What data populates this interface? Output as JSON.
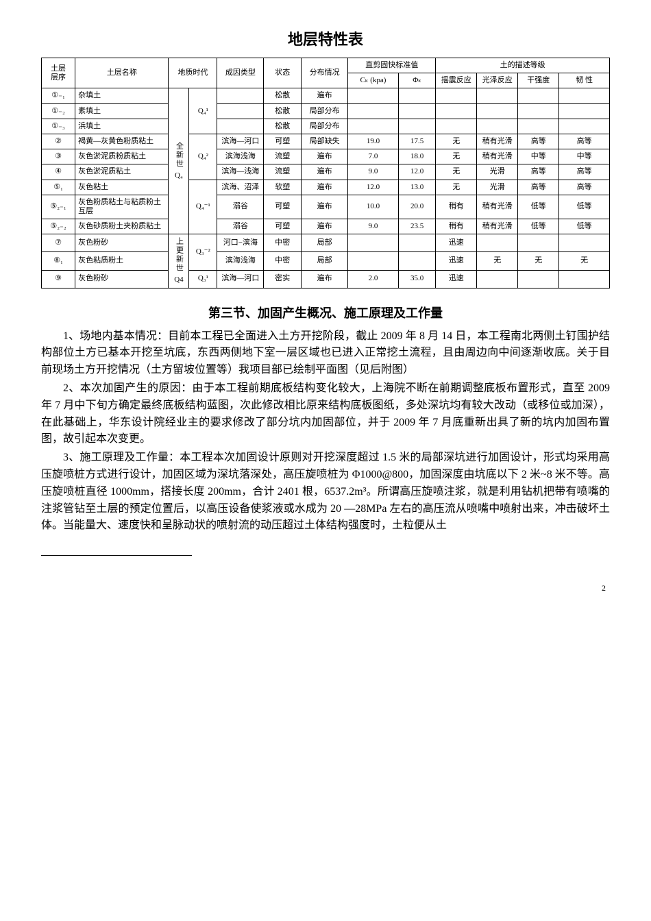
{
  "title": "地层特性表",
  "header": {
    "seq_top": "土层",
    "seq_bottom": "层序",
    "name": "土层名称",
    "era": "地质时代",
    "cause": "成因类型",
    "state": "状态",
    "dist": "分布情况",
    "shear_group": "直剪固快标准值",
    "ck": "Cₖ (kpa)",
    "phi": "Φₖ",
    "desc_group": "土的描述等级",
    "shake": "摇震反应",
    "gloss": "光泽反应",
    "dry": "干强度",
    "tough": "韧    性"
  },
  "era_col1": {
    "a": "全新世",
    "b": "Q₄",
    "c": "上更新世",
    "d": "Q4"
  },
  "era_col2": {
    "a": "Q₄¹",
    "b": "Q₄²",
    "c": "Q₄⁻¹",
    "d": "Q₃⁻²",
    "e": "Q₃¹"
  },
  "rows": [
    {
      "seq": "①₋₁",
      "name": "杂填土",
      "cause": "",
      "state": "松散",
      "dist": "遍布",
      "ck": "",
      "phi": "",
      "shake": "",
      "gloss": "",
      "dry": "",
      "tough": ""
    },
    {
      "seq": "①₋₂",
      "name": "素填土",
      "cause": "",
      "state": "松散",
      "dist": "局部分布",
      "ck": "",
      "phi": "",
      "shake": "",
      "gloss": "",
      "dry": "",
      "tough": ""
    },
    {
      "seq": "①₋₃",
      "name": "浜填土",
      "cause": "",
      "state": "松散",
      "dist": "局部分布",
      "ck": "",
      "phi": "",
      "shake": "",
      "gloss": "",
      "dry": "",
      "tough": ""
    },
    {
      "seq": "②",
      "name": "褐黄—灰黄色粉质粘土",
      "cause": "滨海—河口",
      "state": "可塑",
      "dist": "局部缺失",
      "ck": "19.0",
      "phi": "17.5",
      "shake": "无",
      "gloss": "稍有光滑",
      "dry": "高等",
      "tough": "高等"
    },
    {
      "seq": "③",
      "name": "灰色淤泥质粉质粘土",
      "cause": "滨海浅海",
      "state": "流塑",
      "dist": "遍布",
      "ck": "7.0",
      "phi": "18.0",
      "shake": "无",
      "gloss": "稍有光滑",
      "dry": "中等",
      "tough": "中等"
    },
    {
      "seq": "④",
      "name": "灰色淤泥质粘土",
      "cause": "滨海—浅海",
      "state": "流塑",
      "dist": "遍布",
      "ck": "9.0",
      "phi": "12.0",
      "shake": "无",
      "gloss": "光滑",
      "dry": "高等",
      "tough": "高等"
    },
    {
      "seq": "⑤₁",
      "name": "灰色粘土",
      "cause": "滨海、沼泽",
      "state": "软塑",
      "dist": "遍布",
      "ck": "12.0",
      "phi": "13.0",
      "shake": "无",
      "gloss": "光滑",
      "dry": "高等",
      "tough": "高等"
    },
    {
      "seq": "⑤₂₋₁",
      "name": "灰色粉质粘土与粘质粉土互层",
      "cause": "溺谷",
      "state": "可塑",
      "dist": "遍布",
      "ck": "10.0",
      "phi": "20.0",
      "shake": "稍有",
      "gloss": "稍有光滑",
      "dry": "低等",
      "tough": "低等"
    },
    {
      "seq": "⑤₂₋₂",
      "name": "灰色砂质粉土夹粉质粘土",
      "cause": "溺谷",
      "state": "可塑",
      "dist": "遍布",
      "ck": "9.0",
      "phi": "23.5",
      "shake": "稍有",
      "gloss": "稍有光滑",
      "dry": "低等",
      "tough": "低等"
    },
    {
      "seq": "⑦",
      "name": "灰色粉砂",
      "cause": "河口−滨海",
      "state": "中密",
      "dist": "局部",
      "ck": "",
      "phi": "",
      "shake": "迅速",
      "gloss": "",
      "dry": "",
      "tough": ""
    },
    {
      "seq": "⑧₁",
      "name": "灰色粘质粉土",
      "cause": "滨海浅海",
      "state": "中密",
      "dist": "局部",
      "ck": "",
      "phi": "",
      "shake": "迅速",
      "gloss": "无",
      "dry": "无",
      "tough": "无"
    },
    {
      "seq": "⑨",
      "name": "灰色粉砂",
      "cause": "滨海—河口",
      "state": "密实",
      "dist": "遍布",
      "ck": "2.0",
      "phi": "35.0",
      "shake": "迅速",
      "gloss": "",
      "dry": "",
      "tough": ""
    }
  ],
  "section_title": "第三节、加固产生概况、施工原理及工作量",
  "paragraphs": [
    "1、场地内基本情况：目前本工程已全面进入土方开挖阶段，截止 2009 年 8 月 14 日，本工程南北两侧土钉围护结构部位土方已基本开挖至坑底，东西两侧地下室一层区域也已进入正常挖土流程，且由周边向中间逐渐收底。关于目前现场土方开挖情况（土方留坡位置等）我项目部已绘制平面图（见后附图）",
    "2、本次加固产生的原因：由于本工程前期底板结构变化较大，上海院不断在前期调整底板布置形式，直至 2009 年 7 月中下旬方确定最终底板结构蓝图，次此修改相比原来结构底板图纸，多处深坑均有较大改动（或移位或加深），在此基础上，华东设计院经业主的要求修改了部分坑内加固部位，并于 2009 年 7 月底重新出具了新的坑内加固布置图，故引起本次变更。",
    "3、施工原理及工作量：本工程本次加固设计原则对开挖深度超过 1.5 米的局部深坑进行加固设计，形式均采用高压旋喷桩方式进行设计，加固区域为深坑落深处，高压旋喷桩为 Φ1000@800，加固深度由坑底以下 2 米~8 米不等。高压旋喷桩直径 1000mm，搭接长度 200mm，合计 2401 根，6537.2m³。所谓高压旋喷注浆，就是利用钻机把带有喷嘴的注浆管钻至土层的预定位置后，以高压设备使浆液或水成为 20 —28MPa 左右的高压流从喷嘴中喷射出来，冲击破坏土体。当能量大、速度快和呈脉动状的喷射流的动压超过土体结构强度时，土粒便从土"
  ],
  "page_number": "2"
}
